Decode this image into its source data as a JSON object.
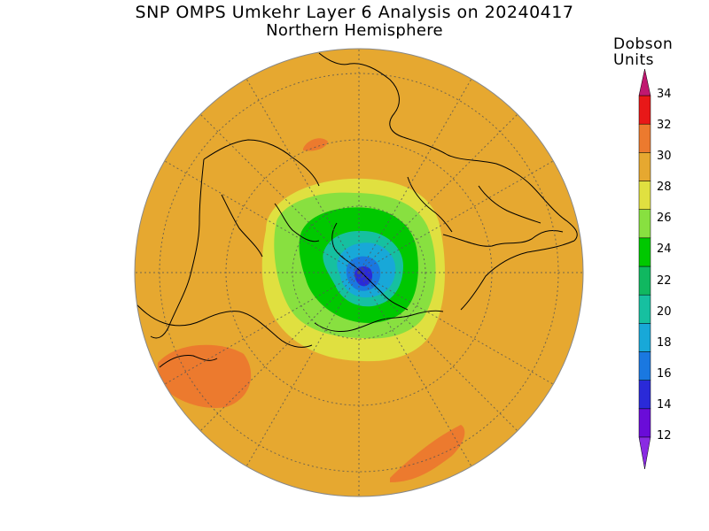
{
  "title": "SNP OMPS Umkehr Layer 6 Analysis on 20240417",
  "subtitle": "Northern Hemisphere",
  "colorbar": {
    "title_line1": "Dobson",
    "title_line2": "Units",
    "ticks": [
      "12",
      "14",
      "16",
      "18",
      "20",
      "22",
      "24",
      "26",
      "28",
      "30",
      "32",
      "34"
    ],
    "colors": [
      "#8a2be2",
      "#6a0cd8",
      "#2a2ad8",
      "#1a78e0",
      "#18a8d8",
      "#16c0a0",
      "#10b860",
      "#00c800",
      "#88e040",
      "#e0e040",
      "#e6a830",
      "#ec7a2e",
      "#e81818",
      "#c01870"
    ]
  },
  "map": {
    "background_value_color": "#e6a830"
  }
}
